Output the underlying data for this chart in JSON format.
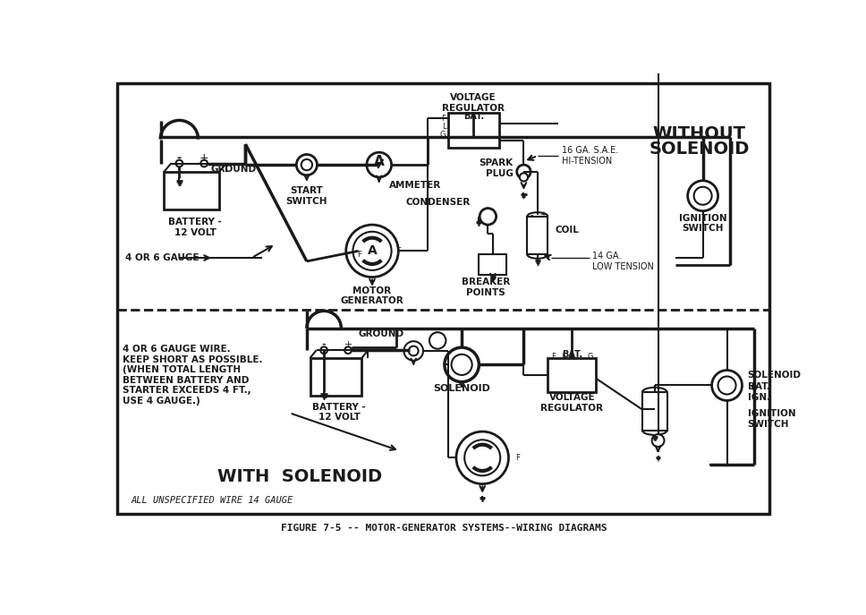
{
  "title": "FIGURE 7-5 -- MOTOR-GENERATOR SYSTEMS--WIRING DIAGRAMS",
  "bg_color": "#ffffff",
  "line_color": "#1a1a1a",
  "top_title": "WITHOUT\nSOLENOID",
  "bottom_title": "WITH  SOLENOID",
  "bottom_italic": "ALL UNSPECIFIED WIRE 14 GAUGE",
  "top_gauge": "4 OR 6 GAUGE",
  "top_battery": "BATTERY -\n12 VOLT",
  "top_ground": "GROUND",
  "top_start": "START\nSWITCH",
  "top_ammeter": "AMMETER",
  "top_bat": "BAT.",
  "top_vr": "VOLTAGE\nREGULATOR",
  "top_hi": "16 GA. S.A.E.\nHI-TENSION",
  "top_ign": "IGNITION\nSWITCH",
  "top_spark": "SPARK\nPLUG",
  "top_cond": "CONDENSER",
  "top_coil": "COIL",
  "top_breaker": "BREAKER\nPOINTS",
  "top_low": "14 GA.\nLOW TENSION",
  "top_motor": "MOTOR\nGENERATOR",
  "bot_note": "4 OR 6 GAUGE WIRE.\nKEEP SHORT AS POSSIBLE.\n(WHEN TOTAL LENGTH\nBETWEEN BATTERY AND\nSTARTER EXCEEDS 4 FT.,\nUSE 4 GAUGE.)",
  "bot_ground": "GROUND",
  "bot_battery": "BATTERY -\n12 VOLT",
  "bot_solenoid": "SOLENOID",
  "bot_bat": "BAT.",
  "bot_vr": "VOLTAGE\nREGULATOR",
  "bot_bat2": "BAT.",
  "bot_solenoid2": "SOLENOID",
  "bot_ign": "IGN.",
  "bot_ignition": "IGNITION\nSWITCH"
}
